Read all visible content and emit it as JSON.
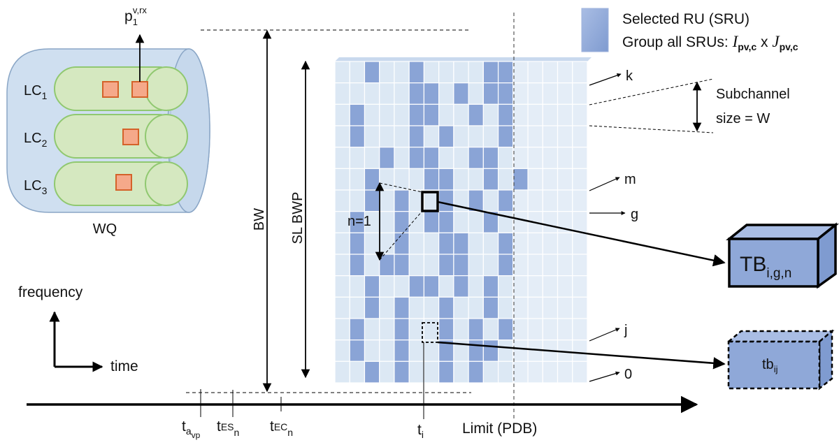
{
  "legend": {
    "selected_ru": "Selected RU (SRU)",
    "group_prefix": "Group all SRUs: ",
    "group_i": "I",
    "group_i_sub": "pv,c",
    "group_x": " x ",
    "group_j": "J",
    "group_j_sub": "pv,c"
  },
  "queue": {
    "label": "WQ",
    "packet_label": "p",
    "packet_sub": "1",
    "packet_sup": "v,rx",
    "channels": [
      {
        "base": "LC",
        "sub": "1"
      },
      {
        "base": "LC",
        "sub": "2"
      },
      {
        "base": "LC",
        "sub": "3"
      }
    ]
  },
  "axes_key": {
    "frequency": "frequency",
    "time": "time"
  },
  "labels": {
    "bw": "BW",
    "sl_bwp": "SL BWP",
    "n_eq_1": "n=1",
    "subchannel_line1": "Subchannel",
    "subchannel_line2": "size = W",
    "limit": "Limit (PDB)"
  },
  "row_labels": {
    "k": "k",
    "m": "m",
    "g": "g",
    "j": "j",
    "zero": "0"
  },
  "time_labels": {
    "t_avp_base": "t",
    "t_avp_sub": "a",
    "t_avp_subsub": "vp",
    "t_es_base": "t",
    "t_es_sub": "ES",
    "t_es_subsub": "n",
    "t_ec_base": "t",
    "t_ec_sub": "EC",
    "t_ec_subsub": "n",
    "t_i_base": "t",
    "t_i_sub": "i"
  },
  "blocks": {
    "tb_big_base": "TB",
    "tb_big_sub": "i,g,n",
    "tb_small_base": "tb",
    "tb_small_sub": "ij"
  },
  "grid": {
    "rows": 15,
    "cols": 17,
    "selected": [
      [
        0,
        2
      ],
      [
        0,
        5
      ],
      [
        0,
        10
      ],
      [
        0,
        11
      ],
      [
        1,
        5
      ],
      [
        1,
        6
      ],
      [
        1,
        8
      ],
      [
        1,
        10
      ],
      [
        1,
        11
      ],
      [
        2,
        1
      ],
      [
        2,
        5
      ],
      [
        2,
        6
      ],
      [
        2,
        9
      ],
      [
        2,
        11
      ],
      [
        3,
        1
      ],
      [
        3,
        5
      ],
      [
        3,
        7
      ],
      [
        3,
        11
      ],
      [
        4,
        3
      ],
      [
        4,
        5
      ],
      [
        4,
        6
      ],
      [
        4,
        9
      ],
      [
        4,
        10
      ],
      [
        5,
        2
      ],
      [
        5,
        6
      ],
      [
        5,
        7
      ],
      [
        5,
        10
      ],
      [
        5,
        12
      ],
      [
        6,
        2
      ],
      [
        6,
        4
      ],
      [
        6,
        7
      ],
      [
        6,
        9
      ],
      [
        6,
        11
      ],
      [
        7,
        1
      ],
      [
        7,
        4
      ],
      [
        7,
        6
      ],
      [
        7,
        7
      ],
      [
        7,
        10
      ],
      [
        8,
        1
      ],
      [
        8,
        4
      ],
      [
        8,
        7
      ],
      [
        8,
        8
      ],
      [
        8,
        11
      ],
      [
        9,
        1
      ],
      [
        9,
        3
      ],
      [
        9,
        4
      ],
      [
        9,
        7
      ],
      [
        9,
        8
      ],
      [
        9,
        11
      ],
      [
        10,
        2
      ],
      [
        10,
        5
      ],
      [
        10,
        6
      ],
      [
        10,
        8
      ],
      [
        10,
        10
      ],
      [
        11,
        2
      ],
      [
        11,
        4
      ],
      [
        11,
        7
      ],
      [
        11,
        10
      ],
      [
        12,
        1
      ],
      [
        12,
        4
      ],
      [
        12,
        7
      ],
      [
        12,
        9
      ],
      [
        12,
        11
      ],
      [
        13,
        1
      ],
      [
        13,
        4
      ],
      [
        13,
        7
      ],
      [
        13,
        9
      ],
      [
        13,
        10
      ],
      [
        14,
        2
      ],
      [
        14,
        4
      ],
      [
        14,
        7
      ],
      [
        14,
        9
      ]
    ],
    "cell_fill": "#dce8f4",
    "cell_selected_fill": "#8aa4d6",
    "cell_right_fill": "#e4edf7"
  },
  "colors": {
    "sru": "#8fa8d8",
    "queue_body": "#cfdff0",
    "channel_fill": "#d5e8c0",
    "channel_stroke": "#90c870",
    "packet_fill": "#f5a98a",
    "packet_stroke": "#d4622a"
  }
}
